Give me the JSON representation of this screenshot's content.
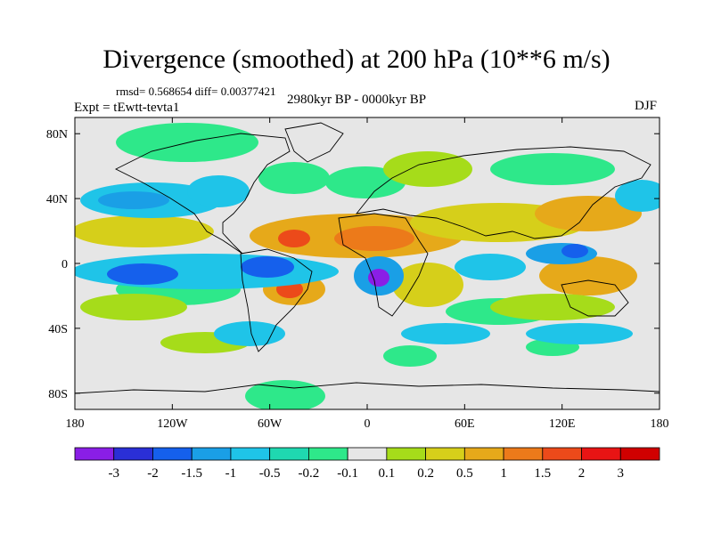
{
  "title": "Divergence (smoothed) at 200 hPa (10**6 m/s)",
  "stats_line": "rmsd= 0.568654 diff= 0.00377421",
  "experiment_label": "Expt = tEwtt-tevta1",
  "period_label": "2980kyr BP - 0000kyr BP",
  "season_label": "DJF",
  "map": {
    "projection": "cylindrical-equidistant",
    "lon_range": [
      -180,
      180
    ],
    "lat_range": [
      -90,
      90
    ],
    "x_ticks": [
      {
        "lon": -180,
        "label": "180"
      },
      {
        "lon": -120,
        "label": "120W"
      },
      {
        "lon": -60,
        "label": "60W"
      },
      {
        "lon": 0,
        "label": "0"
      },
      {
        "lon": 60,
        "label": "60E"
      },
      {
        "lon": 120,
        "label": "120E"
      },
      {
        "lon": 180,
        "label": "180"
      }
    ],
    "y_ticks": [
      {
        "lat": 80,
        "label": "80N"
      },
      {
        "lat": 40,
        "label": "40N"
      },
      {
        "lat": 0,
        "label": "0"
      },
      {
        "lat": -40,
        "label": "40S"
      },
      {
        "lat": -80,
        "label": "80S"
      }
    ]
  },
  "colorbar": {
    "levels": [
      "-3",
      "-2",
      "-1.5",
      "-1",
      "-0.5",
      "-0.2",
      "-0.1",
      "0.1",
      "0.2",
      "0.5",
      "1",
      "1.5",
      "2",
      "3"
    ],
    "colors": [
      "#8a1ee6",
      "#2a2fd6",
      "#1560ec",
      "#1a9fe6",
      "#1fc4e8",
      "#1fd8b0",
      "#2ee88a",
      "#e6e6e6",
      "#a6dc1a",
      "#d6cf1a",
      "#e6a91a",
      "#ec7a1a",
      "#ec4a1a",
      "#e81414",
      "#d00000"
    ]
  },
  "colors": {
    "neutral": "#e6e6e6",
    "coastline": "#000000"
  }
}
